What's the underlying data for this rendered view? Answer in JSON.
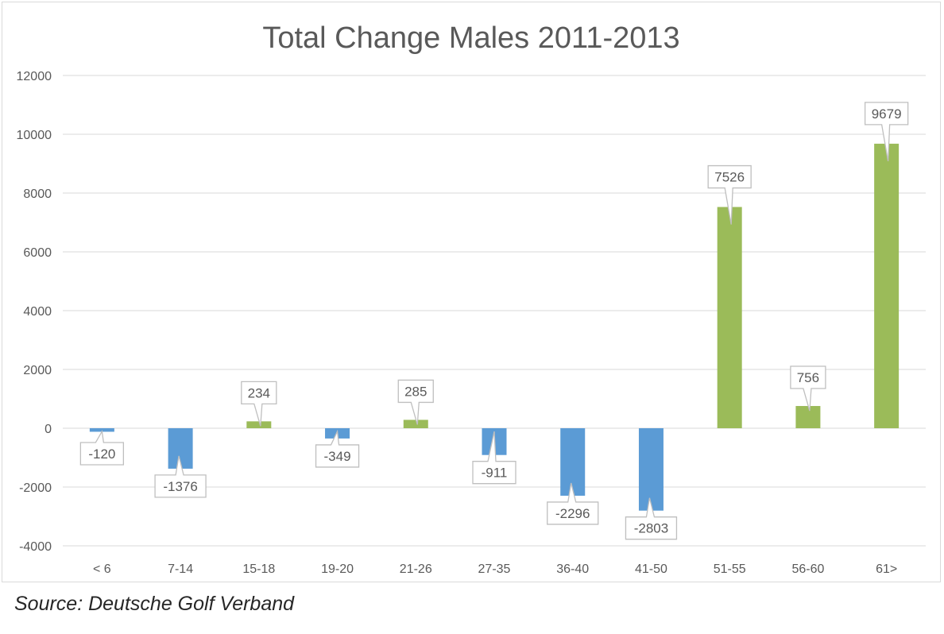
{
  "chart_data": {
    "type": "bar",
    "title": "Total Change Males 2011-2013",
    "categories": [
      "< 6",
      "7-14",
      "15-18",
      "19-20",
      "21-26",
      "27-35",
      "36-40",
      "41-50",
      "51-55",
      "56-60",
      "61>"
    ],
    "values": [
      -120,
      -1376,
      234,
      -349,
      285,
      -911,
      -2296,
      -2803,
      7526,
      756,
      9679
    ],
    "data_labels": [
      "-120",
      "-1376",
      "234",
      "-349",
      "285",
      "-911",
      "-2296",
      "-2803",
      "7526",
      "756",
      "9679"
    ],
    "ylim": [
      -4000,
      12000
    ],
    "yticks": [
      -4000,
      -2000,
      0,
      2000,
      4000,
      6000,
      8000,
      10000,
      12000
    ],
    "ytick_labels": [
      "-4000",
      "-2000",
      "0",
      "2000",
      "4000",
      "6000",
      "8000",
      "10000",
      "12000"
    ],
    "xlabel": "",
    "ylabel": "",
    "grid": true,
    "legend": "none",
    "colors": {
      "positive": "#9bbb59",
      "negative": "#5b9bd5",
      "grid": "#d9d9d9",
      "text": "#595959"
    }
  },
  "footer": {
    "source": "Source: Deutsche Golf Verband"
  }
}
